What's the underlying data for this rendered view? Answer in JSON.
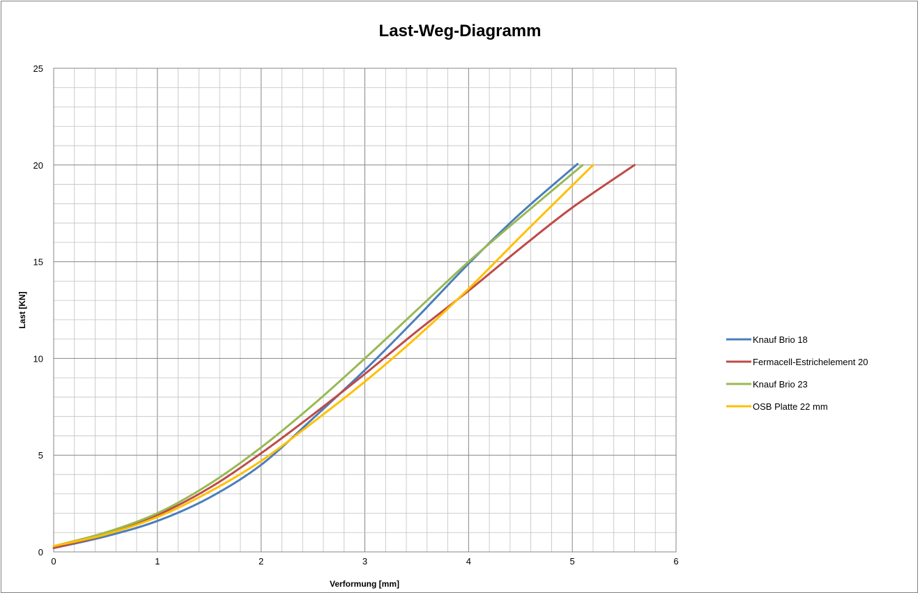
{
  "chart_data": {
    "type": "line",
    "title": "Last-Weg-Diagramm",
    "xlabel": "Verformung [mm]",
    "ylabel": "Last [KN]",
    "xlim": [
      0,
      6
    ],
    "ylim": [
      0,
      25
    ],
    "x_ticks": [
      "0",
      "1",
      "2",
      "3",
      "4",
      "5",
      "6"
    ],
    "y_ticks": [
      "0",
      "5",
      "10",
      "15",
      "20",
      "25"
    ],
    "grid": true,
    "legend_position": "right",
    "series": [
      {
        "name": "Knauf Brio 18",
        "color": "#4a7ebb",
        "points": [
          [
            0,
            0.2
          ],
          [
            0.5,
            0.8
          ],
          [
            1,
            1.6
          ],
          [
            1.5,
            2.8
          ],
          [
            2,
            4.5
          ],
          [
            2.5,
            6.9
          ],
          [
            3,
            9.4
          ],
          [
            3.5,
            12.1
          ],
          [
            4,
            14.9
          ],
          [
            4.5,
            17.5
          ],
          [
            5.05,
            20.05
          ]
        ]
      },
      {
        "name": "Fermacell-Estrichelement 20",
        "color": "#be4b48",
        "points": [
          [
            0,
            0.2
          ],
          [
            0.5,
            0.9
          ],
          [
            1,
            1.9
          ],
          [
            1.5,
            3.3
          ],
          [
            2,
            5.1
          ],
          [
            2.5,
            7.1
          ],
          [
            3,
            9.2
          ],
          [
            3.5,
            11.4
          ],
          [
            4,
            13.5
          ],
          [
            4.5,
            15.7
          ],
          [
            5,
            17.8
          ],
          [
            5.6,
            20
          ]
        ]
      },
      {
        "name": "Knauf Brio 23",
        "color": "#98b954",
        "points": [
          [
            0,
            0.3
          ],
          [
            0.5,
            1.0
          ],
          [
            1,
            2.0
          ],
          [
            1.5,
            3.5
          ],
          [
            2,
            5.4
          ],
          [
            2.5,
            7.6
          ],
          [
            3,
            10.0
          ],
          [
            3.5,
            12.5
          ],
          [
            4,
            15.0
          ],
          [
            4.5,
            17.3
          ],
          [
            5.1,
            20
          ]
        ]
      },
      {
        "name": "OSB Platte  22 mm",
        "color": "#ffc000",
        "points": [
          [
            0,
            0.3
          ],
          [
            0.5,
            0.9
          ],
          [
            1,
            1.8
          ],
          [
            1.5,
            3.1
          ],
          [
            2,
            4.7
          ],
          [
            2.5,
            6.7
          ],
          [
            3,
            8.8
          ],
          [
            3.5,
            11.1
          ],
          [
            4,
            13.6
          ],
          [
            4.5,
            16.3
          ],
          [
            5.2,
            20
          ]
        ]
      }
    ]
  }
}
